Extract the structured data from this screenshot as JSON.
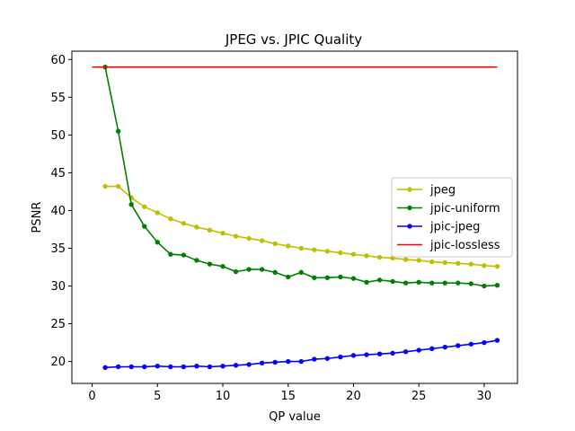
{
  "chart_data": {
    "type": "line",
    "title": "JPEG vs. JPIC Quality",
    "xlabel": "QP value",
    "ylabel": "PSNR",
    "xlim": [
      -1.55,
      32.55
    ],
    "ylim": [
      17.1,
      61.1
    ],
    "xticks": [
      0,
      5,
      10,
      15,
      20,
      25,
      30
    ],
    "yticks": [
      20,
      25,
      30,
      35,
      40,
      45,
      50,
      55,
      60
    ],
    "grid": false,
    "legend_position": "center-right",
    "series": [
      {
        "name": "jpeg",
        "color": "#bfbf00",
        "marker": "circle",
        "x": [
          1,
          2,
          3,
          4,
          5,
          6,
          7,
          8,
          9,
          10,
          11,
          12,
          13,
          14,
          15,
          16,
          17,
          18,
          19,
          20,
          21,
          22,
          23,
          24,
          25,
          26,
          27,
          28,
          29,
          30,
          31
        ],
        "y": [
          43.2,
          43.2,
          41.7,
          40.5,
          39.7,
          38.9,
          38.3,
          37.8,
          37.4,
          37.0,
          36.6,
          36.3,
          36.0,
          35.6,
          35.3,
          35.0,
          34.8,
          34.6,
          34.4,
          34.2,
          34.0,
          33.8,
          33.7,
          33.5,
          33.4,
          33.2,
          33.1,
          33.0,
          32.9,
          32.7,
          32.6
        ]
      },
      {
        "name": "jpic-uniform",
        "color": "#008000",
        "marker": "circle",
        "x": [
          1,
          2,
          3,
          4,
          5,
          6,
          7,
          8,
          9,
          10,
          11,
          12,
          13,
          14,
          15,
          16,
          17,
          18,
          19,
          20,
          21,
          22,
          23,
          24,
          25,
          26,
          27,
          28,
          29,
          30,
          31
        ],
        "y": [
          59.0,
          50.5,
          40.8,
          37.9,
          35.8,
          34.2,
          34.1,
          33.4,
          32.9,
          32.6,
          31.9,
          32.2,
          32.2,
          31.8,
          31.2,
          31.8,
          31.1,
          31.1,
          31.2,
          31.0,
          30.5,
          30.8,
          30.6,
          30.4,
          30.5,
          30.4,
          30.4,
          30.4,
          30.3,
          30.0,
          30.1
        ]
      },
      {
        "name": "jpic-jpeg",
        "color": "#0000ff",
        "marker": "circle",
        "x": [
          1,
          2,
          3,
          4,
          5,
          6,
          7,
          8,
          9,
          10,
          11,
          12,
          13,
          14,
          15,
          16,
          17,
          18,
          19,
          20,
          21,
          22,
          23,
          24,
          25,
          26,
          27,
          28,
          29,
          30,
          31
        ],
        "y": [
          19.2,
          19.3,
          19.3,
          19.3,
          19.4,
          19.3,
          19.3,
          19.4,
          19.3,
          19.4,
          19.5,
          19.6,
          19.8,
          19.9,
          20.0,
          20.0,
          20.3,
          20.4,
          20.6,
          20.8,
          20.9,
          21.0,
          21.1,
          21.3,
          21.5,
          21.7,
          21.9,
          22.1,
          22.3,
          22.5,
          22.8
        ]
      },
      {
        "name": "jpic-lossless",
        "color": "#ff0000",
        "marker": "none",
        "x": [
          0,
          31
        ],
        "y": [
          59.0,
          59.0
        ]
      }
    ]
  }
}
